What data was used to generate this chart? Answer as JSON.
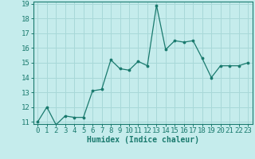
{
  "x": [
    0,
    1,
    2,
    3,
    4,
    5,
    6,
    7,
    8,
    9,
    10,
    11,
    12,
    13,
    14,
    15,
    16,
    17,
    18,
    19,
    20,
    21,
    22,
    23
  ],
  "y": [
    11,
    12,
    10.8,
    11.4,
    11.3,
    11.3,
    13.1,
    13.2,
    15.2,
    14.6,
    14.5,
    15.1,
    14.8,
    18.9,
    15.9,
    16.5,
    16.4,
    16.5,
    15.3,
    14.0,
    14.8,
    14.8,
    14.8,
    15.0
  ],
  "line_color": "#1a7a6e",
  "marker_color": "#1a7a6e",
  "bg_color": "#c5ecec",
  "grid_color": "#a8d8d8",
  "xlabel": "Humidex (Indice chaleur)",
  "ylim": [
    11,
    19
  ],
  "xlim": [
    -0.5,
    23.5
  ],
  "yticks": [
    11,
    12,
    13,
    14,
    15,
    16,
    17,
    18,
    19
  ],
  "xticks": [
    0,
    1,
    2,
    3,
    4,
    5,
    6,
    7,
    8,
    9,
    10,
    11,
    12,
    13,
    14,
    15,
    16,
    17,
    18,
    19,
    20,
    21,
    22,
    23
  ],
  "tick_color": "#1a7a6e",
  "label_color": "#1a7a6e",
  "axis_color": "#1a7a6e",
  "xlabel_fontsize": 7.0,
  "tick_fontsize": 6.5
}
